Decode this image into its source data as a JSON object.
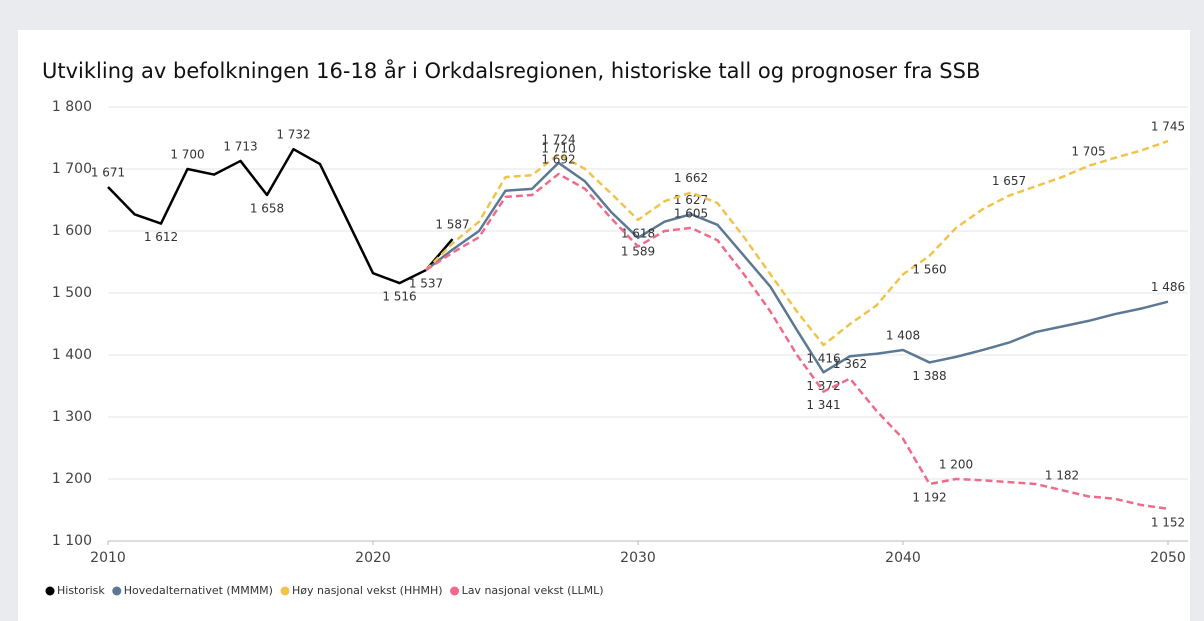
{
  "chart_data": {
    "type": "line",
    "title": "Utvikling av befolkningen 16-18 år i Orkdalsregionen, historiske tall og prognoser fra SSB",
    "x": [
      2010,
      2011,
      2012,
      2013,
      2014,
      2015,
      2016,
      2017,
      2018,
      2019,
      2020,
      2021,
      2022,
      2023,
      2024,
      2025,
      2026,
      2027,
      2028,
      2029,
      2030,
      2031,
      2032,
      2033,
      2034,
      2035,
      2036,
      2037,
      2038,
      2039,
      2040,
      2041,
      2042,
      2043,
      2044,
      2045,
      2046,
      2047,
      2048,
      2049,
      2050
    ],
    "xlim": [
      2010,
      2050
    ],
    "xticks": [
      2010,
      2020,
      2030,
      2040,
      2050
    ],
    "ylim": [
      1100,
      1800
    ],
    "yticks": [
      {
        "value": 1100,
        "label": "1 100"
      },
      {
        "value": 1200,
        "label": "1 200"
      },
      {
        "value": 1300,
        "label": "1 300"
      },
      {
        "value": 1400,
        "label": "1 400"
      },
      {
        "value": 1500,
        "label": "1 500"
      },
      {
        "value": 1600,
        "label": "1 600"
      },
      {
        "value": 1700,
        "label": "1 700"
      },
      {
        "value": 1800,
        "label": "1 800"
      }
    ],
    "grid": true,
    "legend": "bottom",
    "series": [
      {
        "name": "Historisk",
        "color": "#000000",
        "style": "solid",
        "values": [
          1671,
          1627,
          1612,
          1700,
          1691,
          1713,
          1658,
          1732,
          1708,
          1620,
          1532,
          1516,
          1537,
          1587,
          null,
          null,
          null,
          null,
          null,
          null,
          null,
          null,
          null,
          null,
          null,
          null,
          null,
          null,
          null,
          null,
          null,
          null,
          null,
          null,
          null,
          null,
          null,
          null,
          null,
          null,
          null
        ],
        "value_labels": [
          "1 671",
          null,
          "1 612",
          "1 700",
          null,
          "1 713",
          "1 658",
          "1 732",
          null,
          null,
          null,
          "1 516",
          null,
          "1 587",
          null,
          null,
          null,
          null,
          null,
          null,
          null,
          null,
          null,
          null,
          null,
          null,
          null,
          null,
          null,
          null,
          null,
          null,
          null,
          null,
          null,
          null,
          null,
          null,
          null,
          null,
          null
        ]
      },
      {
        "name": "Hovedalternativet (MMMM)",
        "color": "#5b7895",
        "style": "solid",
        "values": [
          null,
          null,
          null,
          null,
          null,
          null,
          null,
          null,
          null,
          null,
          null,
          null,
          1537,
          1570,
          1600,
          1665,
          1668,
          1710,
          1680,
          1630,
          1589,
          1615,
          1627,
          1610,
          1560,
          1510,
          1440,
          1372,
          1398,
          1402,
          1408,
          1388,
          1397,
          1408,
          1420,
          1437,
          1446,
          1455,
          1466,
          1475,
          1486
        ],
        "value_labels": [
          null,
          null,
          null,
          null,
          null,
          null,
          null,
          null,
          null,
          null,
          null,
          null,
          "1 537",
          null,
          null,
          null,
          null,
          "1 710",
          null,
          null,
          "1 589",
          null,
          "1 627",
          null,
          null,
          null,
          null,
          "1 372",
          null,
          null,
          "1 408",
          "1 388",
          null,
          null,
          null,
          null,
          null,
          null,
          null,
          null,
          "1 486"
        ]
      },
      {
        "name": "Høy nasjonal vekst (HHMH)",
        "color": "#f0c44c",
        "style": "dashed",
        "values": [
          null,
          null,
          null,
          null,
          null,
          null,
          null,
          null,
          null,
          null,
          null,
          null,
          1537,
          1580,
          1615,
          1687,
          1690,
          1724,
          1700,
          1660,
          1618,
          1648,
          1662,
          1645,
          1590,
          1530,
          1470,
          1416,
          1450,
          1480,
          1530,
          1560,
          1605,
          1635,
          1657,
          1672,
          1687,
          1705,
          1718,
          1730,
          1745
        ],
        "value_labels": [
          null,
          null,
          null,
          null,
          null,
          null,
          null,
          null,
          null,
          null,
          null,
          null,
          null,
          null,
          null,
          null,
          null,
          "1 724",
          null,
          null,
          "1 618",
          null,
          "1 662",
          null,
          null,
          null,
          null,
          "1 416",
          null,
          null,
          null,
          "1 560",
          null,
          null,
          "1 657",
          null,
          null,
          "1 705",
          null,
          null,
          "1 745"
        ]
      },
      {
        "name": "Lav nasjonal vekst (LLML)",
        "color": "#f06b8a",
        "style": "dashed",
        "values": [
          null,
          null,
          null,
          null,
          null,
          null,
          null,
          null,
          null,
          null,
          null,
          null,
          1537,
          1565,
          1590,
          1655,
          1658,
          1692,
          1668,
          1620,
          1575,
          1600,
          1605,
          1585,
          1530,
          1470,
          1400,
          1341,
          1362,
          1310,
          1265,
          1192,
          1200,
          1198,
          1195,
          1192,
          1182,
          1172,
          1168,
          1158,
          1152
        ],
        "value_labels": [
          null,
          null,
          null,
          null,
          null,
          null,
          null,
          null,
          null,
          null,
          null,
          null,
          null,
          null,
          null,
          null,
          null,
          "1 692",
          null,
          null,
          null,
          null,
          "1 605",
          null,
          null,
          null,
          null,
          "1 341",
          "1 362",
          null,
          null,
          "1 192",
          "1 200",
          null,
          null,
          null,
          "1 182",
          null,
          null,
          null,
          "1 152"
        ]
      }
    ]
  }
}
